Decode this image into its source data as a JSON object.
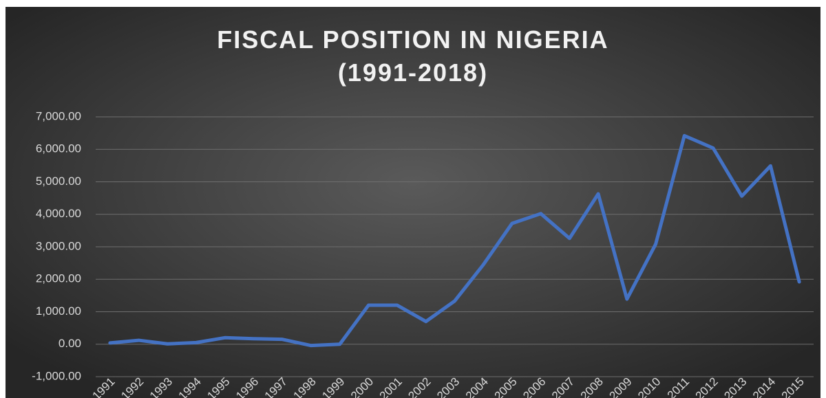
{
  "chart_data": {
    "type": "line",
    "title": "FISCAL POSITION IN NIGERIA",
    "subtitle": "(1991-2018)",
    "categories": [
      "1991",
      "1992",
      "1993",
      "1994",
      "1995",
      "1996",
      "1997",
      "1998",
      "1999",
      "2000",
      "2001",
      "2002",
      "2003",
      "2004",
      "2005",
      "2006",
      "2007",
      "2008",
      "2009",
      "2010",
      "2011",
      "2012",
      "2013",
      "2014",
      "2015"
    ],
    "series": [
      {
        "name": "Fiscal position",
        "color": "#4472c4",
        "values": [
          40,
          120,
          10,
          50,
          200,
          170,
          150,
          -40,
          0,
          1200,
          1200,
          700,
          1330,
          2450,
          3720,
          4020,
          3260,
          4630,
          1390,
          3080,
          6420,
          6040,
          4560,
          5490,
          1920
        ]
      }
    ],
    "ylim": [
      -1000,
      7000
    ],
    "yticks": [
      {
        "value": -1000,
        "label": "-1,000.00"
      },
      {
        "value": 0,
        "label": "0.00"
      },
      {
        "value": 1000,
        "label": "1,000.00"
      },
      {
        "value": 2000,
        "label": "2,000.00"
      },
      {
        "value": 3000,
        "label": "3,000.00"
      },
      {
        "value": 4000,
        "label": "4,000.00"
      },
      {
        "value": 5000,
        "label": "5,000.00"
      },
      {
        "value": 6000,
        "label": "6,000.00"
      },
      {
        "value": 7000,
        "label": "7,000.00"
      }
    ],
    "grid": true
  }
}
